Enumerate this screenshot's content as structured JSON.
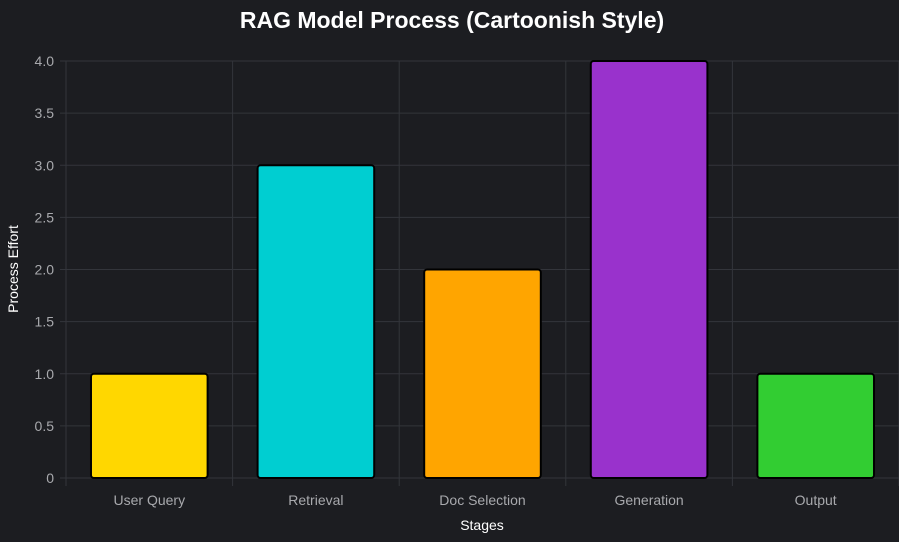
{
  "chart_data": {
    "type": "bar",
    "title": "RAG Model Process (Cartoonish Style)",
    "xlabel": "Stages",
    "ylabel": "Process Effort",
    "categories": [
      "User Query",
      "Retrieval",
      "Doc Selection",
      "Generation",
      "Output"
    ],
    "values": [
      1,
      3,
      2,
      4,
      1
    ],
    "colors": [
      "#ffd700",
      "#00ced1",
      "#ffa500",
      "#9932cc",
      "#32cd32"
    ],
    "ylim": [
      0,
      4
    ],
    "yticks": [
      "0",
      "0.5",
      "1.0",
      "1.5",
      "2.0",
      "2.5",
      "3.0",
      "3.5",
      "4.0"
    ],
    "grid": true,
    "legend": "none"
  },
  "colors": {
    "background": "#1c1d21",
    "grid": "#33353b",
    "tick_text": "#a8a9ad",
    "title_text": "#ffffff"
  }
}
